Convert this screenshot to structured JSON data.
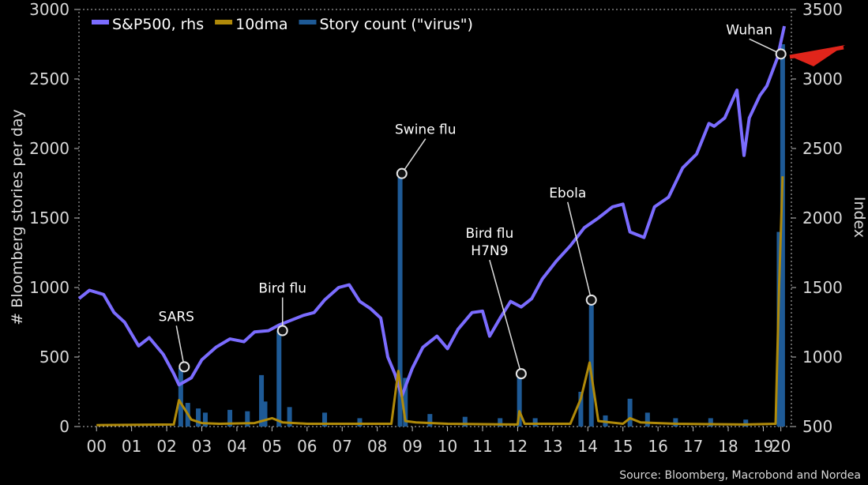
{
  "chart_data": {
    "type": "line",
    "source": "Source: Bloomberg, Macrobond and Nordea",
    "ylabel_left": "# Bloomberg stories per day",
    "ylabel_right": "Index",
    "ylim_left": [
      0,
      3000
    ],
    "ylim_right": [
      500,
      3500
    ],
    "xlim": [
      2000,
      2020.3
    ],
    "x_ticks": [
      {
        "value": 2000.5,
        "label": "00"
      },
      {
        "value": 2001.5,
        "label": "01"
      },
      {
        "value": 2002.5,
        "label": "02"
      },
      {
        "value": 2003.5,
        "label": "03"
      },
      {
        "value": 2004.5,
        "label": "04"
      },
      {
        "value": 2005.5,
        "label": "05"
      },
      {
        "value": 2006.5,
        "label": "06"
      },
      {
        "value": 2007.5,
        "label": "07"
      },
      {
        "value": 2008.5,
        "label": "08"
      },
      {
        "value": 2009.5,
        "label": "09"
      },
      {
        "value": 2010.5,
        "label": "10"
      },
      {
        "value": 2011.5,
        "label": "11"
      },
      {
        "value": 2012.5,
        "label": "12"
      },
      {
        "value": 2013.5,
        "label": "13"
      },
      {
        "value": 2014.5,
        "label": "14"
      },
      {
        "value": 2015.5,
        "label": "15"
      },
      {
        "value": 2016.5,
        "label": "16"
      },
      {
        "value": 2017.5,
        "label": "17"
      },
      {
        "value": 2018.5,
        "label": "18"
      },
      {
        "value": 2019.5,
        "label": "19"
      },
      {
        "value": 2020.0,
        "label": "20"
      }
    ],
    "y_ticks_left": [
      {
        "value": 0,
        "label": "0"
      },
      {
        "value": 500,
        "label": "500"
      },
      {
        "value": 1000,
        "label": "1000"
      },
      {
        "value": 1500,
        "label": "1500"
      },
      {
        "value": 2000,
        "label": "2000"
      },
      {
        "value": 2500,
        "label": "2500"
      },
      {
        "value": 3000,
        "label": "3000"
      }
    ],
    "y_ticks_right": [
      {
        "value": 500,
        "label": "500"
      },
      {
        "value": 1000,
        "label": "1000"
      },
      {
        "value": 1500,
        "label": "1500"
      },
      {
        "value": 2000,
        "label": "2000"
      },
      {
        "value": 2500,
        "label": "2500"
      },
      {
        "value": 3000,
        "label": "3000"
      },
      {
        "value": 3500,
        "label": "3500"
      }
    ],
    "series": [
      {
        "name": "S&P500, rhs",
        "axis": "right",
        "color": "#7b6cff",
        "points": [
          [
            2000.0,
            1420
          ],
          [
            2000.3,
            1480
          ],
          [
            2000.7,
            1450
          ],
          [
            2001.0,
            1320
          ],
          [
            2001.3,
            1250
          ],
          [
            2001.7,
            1080
          ],
          [
            2002.0,
            1140
          ],
          [
            2002.4,
            1020
          ],
          [
            2002.7,
            880
          ],
          [
            2002.85,
            800
          ],
          [
            2003.2,
            850
          ],
          [
            2003.5,
            980
          ],
          [
            2003.9,
            1070
          ],
          [
            2004.3,
            1130
          ],
          [
            2004.7,
            1110
          ],
          [
            2005.0,
            1180
          ],
          [
            2005.4,
            1190
          ],
          [
            2005.7,
            1230
          ],
          [
            2006.0,
            1260
          ],
          [
            2006.4,
            1300
          ],
          [
            2006.7,
            1320
          ],
          [
            2007.0,
            1410
          ],
          [
            2007.4,
            1500
          ],
          [
            2007.7,
            1520
          ],
          [
            2008.0,
            1400
          ],
          [
            2008.3,
            1350
          ],
          [
            2008.6,
            1280
          ],
          [
            2008.8,
            1000
          ],
          [
            2009.0,
            880
          ],
          [
            2009.2,
            720
          ],
          [
            2009.5,
            920
          ],
          [
            2009.8,
            1070
          ],
          [
            2010.2,
            1150
          ],
          [
            2010.5,
            1060
          ],
          [
            2010.8,
            1200
          ],
          [
            2011.2,
            1320
          ],
          [
            2011.5,
            1330
          ],
          [
            2011.7,
            1150
          ],
          [
            2012.0,
            1280
          ],
          [
            2012.3,
            1400
          ],
          [
            2012.6,
            1360
          ],
          [
            2012.9,
            1420
          ],
          [
            2013.2,
            1560
          ],
          [
            2013.6,
            1690
          ],
          [
            2014.0,
            1800
          ],
          [
            2014.4,
            1930
          ],
          [
            2014.8,
            2000
          ],
          [
            2015.2,
            2080
          ],
          [
            2015.5,
            2100
          ],
          [
            2015.7,
            1900
          ],
          [
            2016.1,
            1860
          ],
          [
            2016.4,
            2080
          ],
          [
            2016.8,
            2150
          ],
          [
            2017.2,
            2360
          ],
          [
            2017.6,
            2460
          ],
          [
            2017.95,
            2680
          ],
          [
            2018.1,
            2660
          ],
          [
            2018.4,
            2720
          ],
          [
            2018.75,
            2920
          ],
          [
            2018.95,
            2450
          ],
          [
            2019.1,
            2720
          ],
          [
            2019.4,
            2880
          ],
          [
            2019.6,
            2950
          ],
          [
            2019.9,
            3150
          ],
          [
            2020.1,
            3380
          ]
        ]
      },
      {
        "name": "10dma",
        "axis": "left",
        "color": "#b08a0a",
        "points": [
          [
            2000.5,
            10
          ],
          [
            2002.7,
            15
          ],
          [
            2002.85,
            190
          ],
          [
            2003.2,
            50
          ],
          [
            2003.5,
            25
          ],
          [
            2004.0,
            20
          ],
          [
            2005.0,
            25
          ],
          [
            2005.5,
            60
          ],
          [
            2005.8,
            30
          ],
          [
            2006.5,
            20
          ],
          [
            2008.9,
            20
          ],
          [
            2009.1,
            400
          ],
          [
            2009.3,
            40
          ],
          [
            2009.6,
            30
          ],
          [
            2010.5,
            20
          ],
          [
            2012.5,
            15
          ],
          [
            2012.55,
            110
          ],
          [
            2012.7,
            20
          ],
          [
            2014.0,
            20
          ],
          [
            2014.3,
            200
          ],
          [
            2014.55,
            460
          ],
          [
            2014.8,
            40
          ],
          [
            2015.5,
            20
          ],
          [
            2015.7,
            60
          ],
          [
            2016.0,
            30
          ],
          [
            2017.0,
            20
          ],
          [
            2019.0,
            15
          ],
          [
            2019.85,
            20
          ],
          [
            2019.95,
            1000
          ],
          [
            2020.05,
            1800
          ]
        ]
      },
      {
        "name": "Story count (\"virus\")",
        "axis": "left",
        "color": "#1e5a96",
        "type": "bar",
        "points": [
          [
            2002.9,
            420
          ],
          [
            2003.1,
            170
          ],
          [
            2003.4,
            130
          ],
          [
            2003.6,
            100
          ],
          [
            2004.3,
            120
          ],
          [
            2004.8,
            110
          ],
          [
            2005.3,
            180
          ],
          [
            2005.7,
            690
          ],
          [
            2005.2,
            370
          ],
          [
            2006.0,
            140
          ],
          [
            2007.0,
            100
          ],
          [
            2008.0,
            60
          ],
          [
            2009.15,
            1820
          ],
          [
            2009.3,
            350
          ],
          [
            2010.0,
            90
          ],
          [
            2011.0,
            70
          ],
          [
            2012.0,
            60
          ],
          [
            2012.55,
            360
          ],
          [
            2013.0,
            60
          ],
          [
            2014.3,
            250
          ],
          [
            2014.6,
            900
          ],
          [
            2015.0,
            80
          ],
          [
            2015.7,
            200
          ],
          [
            2016.2,
            100
          ],
          [
            2017.0,
            60
          ],
          [
            2018.0,
            60
          ],
          [
            2019.0,
            50
          ],
          [
            2019.95,
            1400
          ],
          [
            2020.05,
            2750
          ]
        ]
      }
    ],
    "annotations": [
      {
        "lines": [
          "SARS"
        ],
        "x": 2003.0,
        "y_axis": "right",
        "y": 930
      },
      {
        "lines": [
          "Bird flu"
        ],
        "x": 2005.8,
        "y_axis": "left",
        "y": 690
      },
      {
        "lines": [
          "Swine flu"
        ],
        "x": 2009.2,
        "y_axis": "left",
        "y": 1820
      },
      {
        "lines": [
          "Bird flu",
          "H7N9"
        ],
        "x": 2012.6,
        "y_axis": "left",
        "y": 380
      },
      {
        "lines": [
          "Ebola"
        ],
        "x": 2014.6,
        "y_axis": "left",
        "y": 910
      },
      {
        "lines": [
          "Wuhan"
        ],
        "x": 2020.0,
        "y_axis": "right",
        "y": 3180
      }
    ]
  }
}
